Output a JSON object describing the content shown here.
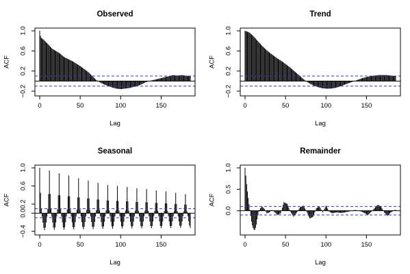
{
  "chart_data": [
    {
      "type": "bar",
      "title": "Observed",
      "xlabel": "Lag",
      "ylabel": "ACF",
      "xlim": [
        0,
        186
      ],
      "ylim": [
        -0.24,
        1.0
      ],
      "xticks": [
        0,
        50,
        100,
        150
      ],
      "yticks": [
        -0.2,
        0.2,
        0.6,
        1.0
      ],
      "ytick_labels": [
        "−0.2",
        "0.2",
        "0.6",
        "1.0"
      ],
      "ci_band": 0.1,
      "anchors_lag": [
        0,
        1,
        2,
        5,
        10,
        15,
        20,
        25,
        30,
        35,
        40,
        45,
        50,
        55,
        60,
        65,
        70,
        75,
        80,
        85,
        90,
        95,
        100,
        105,
        110,
        115,
        120,
        125,
        130,
        135,
        140,
        145,
        150,
        155,
        160,
        165,
        170,
        175,
        180,
        185
      ],
      "anchors_acf": [
        1.0,
        0.9,
        0.86,
        0.82,
        0.74,
        0.65,
        0.6,
        0.55,
        0.48,
        0.44,
        0.4,
        0.35,
        0.3,
        0.24,
        0.18,
        0.1,
        0.02,
        -0.03,
        -0.07,
        -0.1,
        -0.13,
        -0.15,
        -0.16,
        -0.15,
        -0.14,
        -0.12,
        -0.1,
        -0.07,
        -0.03,
        0.0,
        0.02,
        0.04,
        0.06,
        0.08,
        0.1,
        0.12,
        0.11,
        0.12,
        0.11,
        0.1
      ]
    },
    {
      "type": "bar",
      "title": "Trend",
      "xlabel": "Lag",
      "ylabel": "ACF",
      "xlim": [
        0,
        186
      ],
      "ylim": [
        -0.24,
        1.0
      ],
      "xticks": [
        0,
        50,
        100,
        150
      ],
      "yticks": [
        -0.2,
        0.2,
        0.6,
        1.0
      ],
      "ytick_labels": [
        "−0.2",
        "0.2",
        "0.6",
        "1.0"
      ],
      "ci_band": 0.1,
      "anchors_lag": [
        0,
        5,
        10,
        15,
        20,
        25,
        30,
        35,
        40,
        45,
        50,
        55,
        60,
        65,
        70,
        75,
        80,
        85,
        90,
        95,
        100,
        105,
        110,
        115,
        120,
        125,
        130,
        135,
        140,
        145,
        150,
        155,
        160,
        165,
        170,
        175,
        180,
        185
      ],
      "anchors_acf": [
        1.0,
        0.97,
        0.9,
        0.81,
        0.72,
        0.64,
        0.57,
        0.51,
        0.45,
        0.4,
        0.34,
        0.28,
        0.21,
        0.14,
        0.07,
        0.0,
        -0.05,
        -0.09,
        -0.12,
        -0.14,
        -0.15,
        -0.15,
        -0.14,
        -0.12,
        -0.09,
        -0.06,
        -0.03,
        0.0,
        0.03,
        0.06,
        0.08,
        0.1,
        0.11,
        0.12,
        0.12,
        0.12,
        0.11,
        0.1
      ]
    },
    {
      "type": "bar",
      "title": "Seasonal",
      "xlabel": "Lag",
      "ylabel": "ACF",
      "xlim": [
        0,
        186
      ],
      "ylim": [
        -0.42,
        1.0
      ],
      "xticks": [
        0,
        50,
        100,
        150
      ],
      "yticks": [
        -0.4,
        0.0,
        0.2,
        0.6,
        1.0
      ],
      "ytick_labels": [
        "−0.4",
        "0.0",
        "0.2",
        "0.6",
        "1.0"
      ],
      "ci_band": 0.1,
      "period": 12,
      "peaks_lag": [
        0,
        12,
        24,
        36,
        48,
        60,
        72,
        84,
        96,
        108,
        120,
        132,
        144,
        156,
        168,
        180
      ],
      "peaks_acf": [
        1.0,
        0.94,
        0.88,
        0.83,
        0.77,
        0.72,
        0.67,
        0.62,
        0.6,
        0.58,
        0.55,
        0.53,
        0.5,
        0.48,
        0.45,
        0.42
      ],
      "trough_acf": -0.38
    },
    {
      "type": "bar",
      "title": "Remainder",
      "xlabel": "Lag",
      "ylabel": "ACF",
      "xlim": [
        0,
        186
      ],
      "ylim": [
        -0.5,
        1.0
      ],
      "xticks": [
        0,
        50,
        100,
        150
      ],
      "yticks": [
        0.0,
        0.5,
        1.0
      ],
      "ytick_labels": [
        "0.0",
        "0.5",
        "1.0"
      ],
      "ci_band": 0.1,
      "anchors_lag": [
        0,
        1,
        2,
        3,
        4,
        5,
        6,
        7,
        8,
        9,
        10,
        11,
        12,
        13,
        14,
        15,
        17,
        19,
        21,
        24,
        27,
        30,
        33,
        36,
        40,
        44,
        48,
        52,
        56,
        60,
        64,
        68,
        72,
        76,
        80,
        84,
        88,
        92,
        96,
        100,
        104,
        108,
        112,
        120,
        128,
        136,
        144,
        152,
        158,
        164,
        168,
        172,
        176,
        180,
        185
      ],
      "anchors_acf": [
        1.0,
        0.82,
        0.62,
        0.45,
        0.3,
        0.15,
        0.02,
        -0.12,
        -0.25,
        -0.34,
        -0.4,
        -0.44,
        -0.45,
        -0.4,
        -0.32,
        -0.2,
        -0.02,
        0.06,
        0.1,
        0.04,
        -0.06,
        -0.04,
        0.02,
        -0.02,
        -0.1,
        -0.06,
        0.2,
        0.16,
        -0.02,
        -0.14,
        -0.04,
        0.08,
        0.12,
        -0.02,
        -0.18,
        -0.14,
        0.06,
        0.1,
        -0.04,
        0.12,
        -0.02,
        -0.06,
        -0.04,
        -0.05,
        -0.02,
        0.02,
        -0.02,
        -0.1,
        0.02,
        0.14,
        0.1,
        -0.04,
        -0.12,
        -0.04,
        0.02
      ]
    }
  ]
}
